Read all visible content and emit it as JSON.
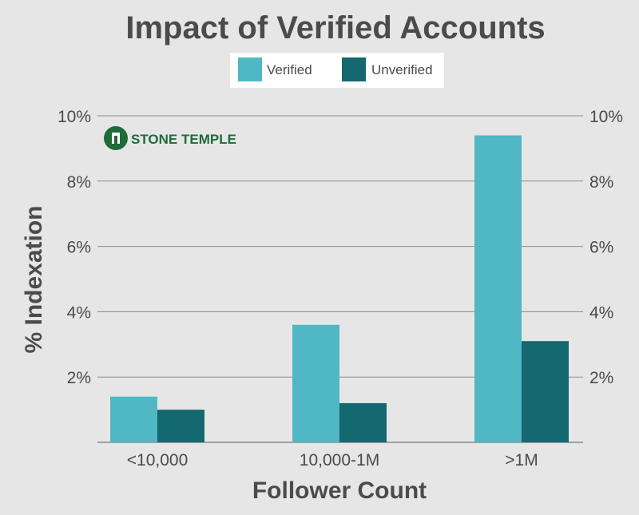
{
  "chart_data": {
    "type": "bar",
    "title": "Impact of Verified Accounts",
    "xlabel": "Follower Count",
    "ylabel": "% Indexation",
    "categories": [
      "<10,000",
      "10,000-1M",
      ">1M"
    ],
    "series": [
      {
        "name": "Verified",
        "values": [
          1.4,
          3.6,
          9.4
        ],
        "color": "#4fb8c4"
      },
      {
        "name": "Unverified",
        "values": [
          1.0,
          1.2,
          3.1
        ],
        "color": "#146870"
      }
    ],
    "ylim": [
      0,
      10
    ],
    "yticks": [
      {
        "value": 2,
        "label": "2%"
      },
      {
        "value": 4,
        "label": "4%"
      },
      {
        "value": 6,
        "label": "6%"
      },
      {
        "value": 8,
        "label": "8%"
      },
      {
        "value": 10,
        "label": "10%"
      }
    ],
    "grid": true,
    "legend_position": "top-center",
    "secondary_y_axis": true
  },
  "logo": {
    "text": "STONE TEMPLE",
    "color": "#1f6b3a",
    "icon": "temple-door-icon"
  },
  "colors": {
    "background": "#e6e6e6",
    "text": "#4b4b4b",
    "gridline": "#8a8a8a"
  }
}
